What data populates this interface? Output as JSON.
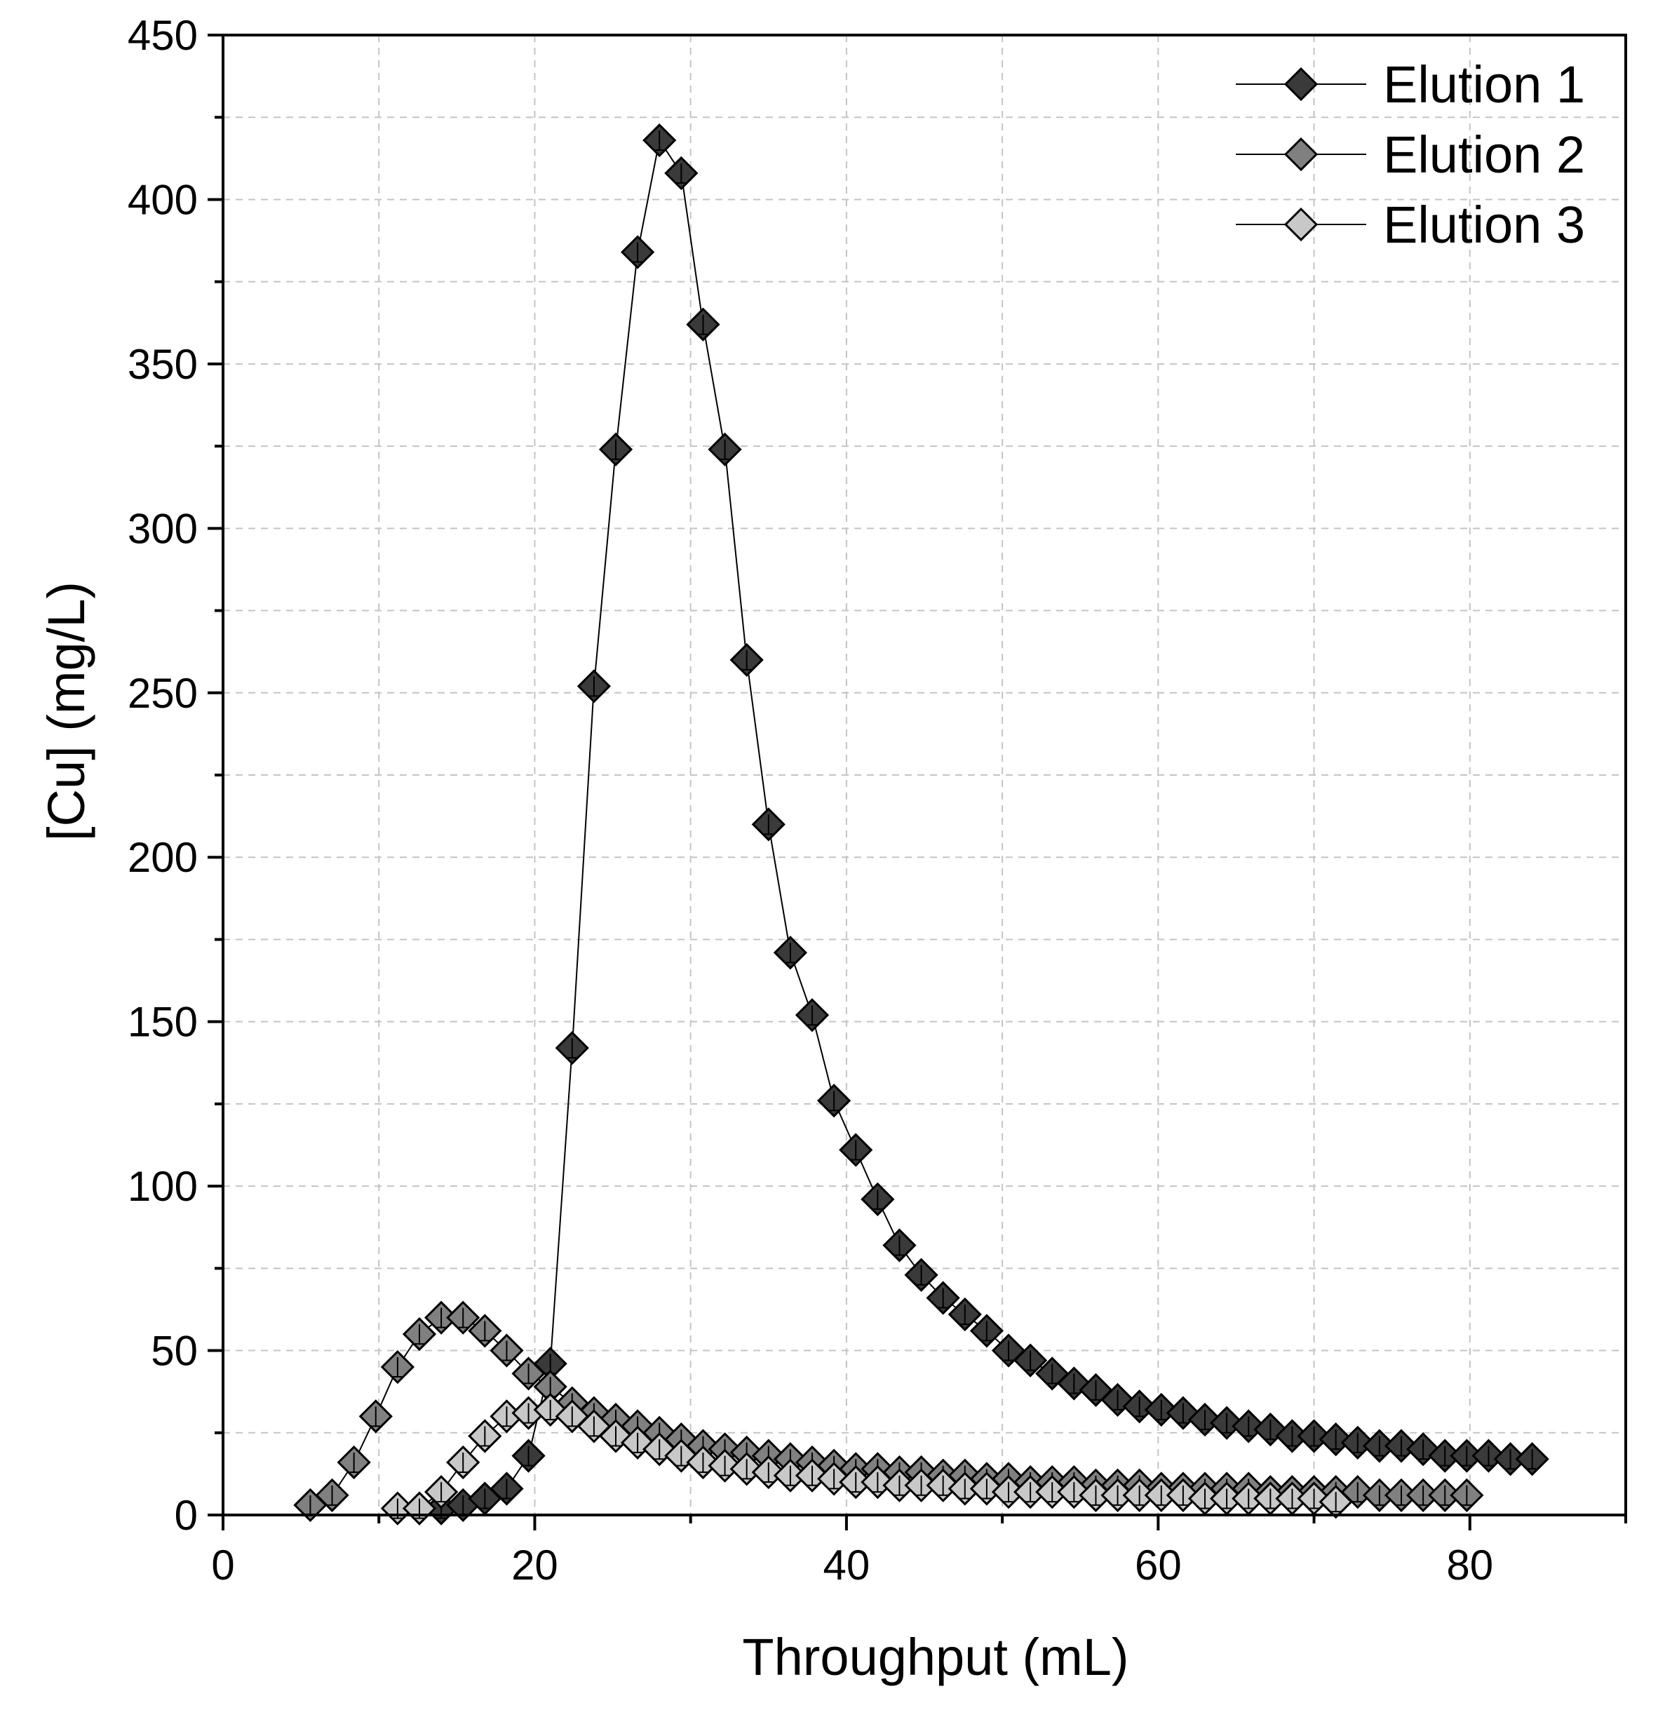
{
  "chart_data": {
    "type": "line",
    "title": "",
    "xlabel": "Throughput (mL)",
    "ylabel": "[Cu] (mg/L)",
    "xlim": [
      0,
      90
    ],
    "ylim": [
      0,
      450
    ],
    "xticks": [
      0,
      20,
      40,
      60,
      80
    ],
    "xtick_labels": [
      "0",
      "20",
      "40",
      "60",
      "80"
    ],
    "yticks": [
      0,
      50,
      100,
      150,
      200,
      250,
      300,
      350,
      400,
      450
    ],
    "ytick_labels": [
      "0",
      "50",
      "100",
      "150",
      "200",
      "250",
      "300",
      "350",
      "400",
      "450"
    ],
    "grid": true,
    "legend_position": "top-right",
    "marker": "diamond",
    "series": [
      {
        "name": "Elution 1",
        "color": "#3a3a3a",
        "x": [
          12.6,
          14.0,
          15.4,
          16.8,
          18.2,
          19.6,
          21.0,
          22.4,
          23.8,
          25.2,
          26.6,
          28.0,
          29.4,
          30.8,
          32.2,
          33.6,
          35.0,
          36.4,
          37.8,
          39.2,
          40.6,
          42.0,
          43.4,
          44.8,
          46.2,
          47.6,
          49.0,
          50.4,
          51.8,
          53.2,
          54.6,
          56.0,
          57.4,
          58.8,
          60.2,
          61.6,
          63.0,
          64.4,
          65.8,
          67.2,
          68.6,
          70.0,
          71.4,
          72.8,
          74.2,
          75.6,
          77.0,
          78.4,
          79.8,
          81.2,
          82.6,
          84.0
        ],
        "values": [
          2,
          2,
          3,
          5,
          8,
          18,
          46,
          142,
          252,
          324,
          384,
          418,
          408,
          362,
          324,
          260,
          210,
          171,
          152,
          126,
          111,
          96,
          82,
          73,
          66,
          61,
          56,
          50,
          47,
          43,
          40,
          38,
          35,
          33,
          32,
          31,
          29,
          28,
          27,
          26,
          24,
          24,
          23,
          22,
          21,
          21,
          20,
          18,
          18,
          18,
          17,
          17
        ]
      },
      {
        "name": "Elution 2",
        "color": "#808080",
        "x": [
          5.6,
          7.0,
          8.4,
          9.8,
          11.2,
          12.6,
          14.0,
          15.4,
          16.8,
          18.2,
          19.6,
          21.0,
          22.4,
          23.8,
          25.2,
          26.6,
          28.0,
          29.4,
          30.8,
          32.2,
          33.6,
          35.0,
          36.4,
          37.8,
          39.2,
          40.6,
          42.0,
          43.4,
          44.8,
          46.2,
          47.6,
          49.0,
          50.4,
          51.8,
          53.2,
          54.6,
          56.0,
          57.4,
          58.8,
          60.2,
          61.6,
          63.0,
          64.4,
          65.8,
          67.2,
          68.6,
          70.0,
          71.4,
          72.8,
          74.2,
          75.6,
          77.0,
          78.4,
          79.8
        ],
        "values": [
          3,
          6,
          16,
          30,
          45,
          55,
          60,
          60,
          56,
          50,
          43,
          39,
          34,
          31,
          29,
          27,
          25,
          23,
          21,
          20,
          19,
          18,
          17,
          16,
          15,
          14,
          14,
          13,
          13,
          12,
          12,
          11,
          11,
          10,
          10,
          10,
          9,
          9,
          9,
          8,
          8,
          8,
          8,
          8,
          7,
          7,
          7,
          7,
          7,
          6,
          6,
          6,
          6,
          6
        ]
      },
      {
        "name": "Elution 3",
        "color": "#c8c8c8",
        "x": [
          11.2,
          12.6,
          14.0,
          15.4,
          16.8,
          18.2,
          19.6,
          21.0,
          22.4,
          23.8,
          25.2,
          26.6,
          28.0,
          29.4,
          30.8,
          32.2,
          33.6,
          35.0,
          36.4,
          37.8,
          39.2,
          40.6,
          42.0,
          43.4,
          44.8,
          46.2,
          47.6,
          49.0,
          50.4,
          51.8,
          53.2,
          54.6,
          56.0,
          57.4,
          58.8,
          60.2,
          61.6,
          63.0,
          64.4,
          65.8,
          67.2,
          68.6,
          70.0,
          71.4
        ],
        "values": [
          2,
          2,
          7,
          16,
          24,
          30,
          31,
          32,
          30,
          27,
          24,
          22,
          20,
          18,
          16,
          15,
          14,
          13,
          12,
          12,
          11,
          10,
          10,
          9,
          9,
          9,
          8,
          8,
          7,
          7,
          7,
          7,
          6,
          6,
          6,
          6,
          6,
          5,
          5,
          5,
          5,
          5,
          5,
          4
        ]
      }
    ]
  }
}
